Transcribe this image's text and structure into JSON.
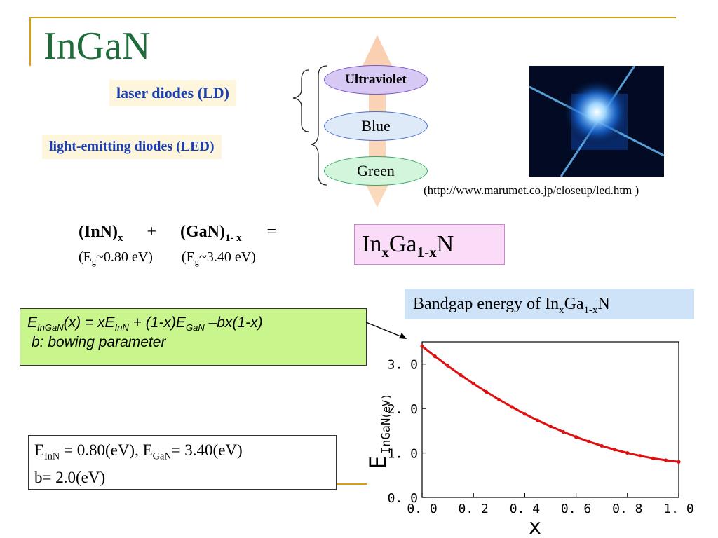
{
  "title": "InGaN",
  "labels": {
    "ld": "laser diodes (LD)",
    "led": "light-emitting diodes (LED)"
  },
  "ellipses": [
    {
      "text": "Ultraviolet",
      "fill": "#d8c8f4",
      "border": "#7a55c8"
    },
    {
      "text": "Blue",
      "fill": "#dfeaf8",
      "border": "#4a6fc8"
    },
    {
      "text": "Green",
      "fill": "#d2f5dc",
      "border": "#3aa66a"
    }
  ],
  "photo_credit": "(http://www.marumet.co.jp/closeup/led.htm )",
  "formula": {
    "inn": "(InN)",
    "inn_sub": "x",
    "plus": "+",
    "gan": "(GaN)",
    "gan_sub": "1- x",
    "equals": "=",
    "eg_inn_pre": "(E",
    "eg_inn_sub": "g",
    "eg_inn_post": "~0.80 eV)",
    "eg_gan_pre": "(E",
    "eg_gan_sub": "g",
    "eg_gan_post": "~3.40 eV)",
    "result_in": "In",
    "result_x": "x",
    "result_ga": "Ga",
    "result_1x": "1-x",
    "result_n": "N"
  },
  "bandgap_title": {
    "pre": "Bandgap energy of In",
    "x": "x",
    "ga": "Ga",
    "sub": "1-x",
    "n": "N"
  },
  "equation": {
    "e": "E",
    "e_sub": "InGaN",
    "mid1": "(x) = xE",
    "inn_sub": "InN",
    "mid2": " + (1-x)E",
    "gan_sub": "GaN",
    "tail": " –bx(1-x)",
    "bowing": "b: bowing parameter"
  },
  "params": {
    "e1": "E",
    "e1_sub": "InN",
    "v1": " = 0.80(eV), E",
    "e2_sub": "GaN",
    "v2": "= 3.40(eV)",
    "b": "b= 2.0(eV)"
  },
  "chart_data": {
    "type": "line",
    "x": [
      0.0,
      0.05,
      0.1,
      0.15,
      0.2,
      0.25,
      0.3,
      0.35,
      0.4,
      0.45,
      0.5,
      0.55,
      0.6,
      0.65,
      0.7,
      0.75,
      0.8,
      0.85,
      0.9,
      0.95,
      1.0
    ],
    "y": [
      3.4,
      3.175,
      2.96,
      2.755,
      2.56,
      2.375,
      2.2,
      2.035,
      1.88,
      1.735,
      1.6,
      1.475,
      1.36,
      1.255,
      1.16,
      1.075,
      1.0,
      0.935,
      0.88,
      0.835,
      0.8
    ],
    "xlim": [
      0,
      1.0
    ],
    "ylim": [
      0,
      3.5
    ],
    "xticks": [
      "0. 0",
      "0. 2",
      "0. 4",
      "0. 6",
      "0. 8",
      "1. 0"
    ],
    "yticks": [
      "0. 0",
      "1. 0",
      "2. 0",
      "3. 0"
    ],
    "xlabel": "x",
    "ylabel": "E",
    "ylabel_sub": "InGaN",
    "ylabel_unit": "(eV)",
    "color": "#e01010"
  }
}
